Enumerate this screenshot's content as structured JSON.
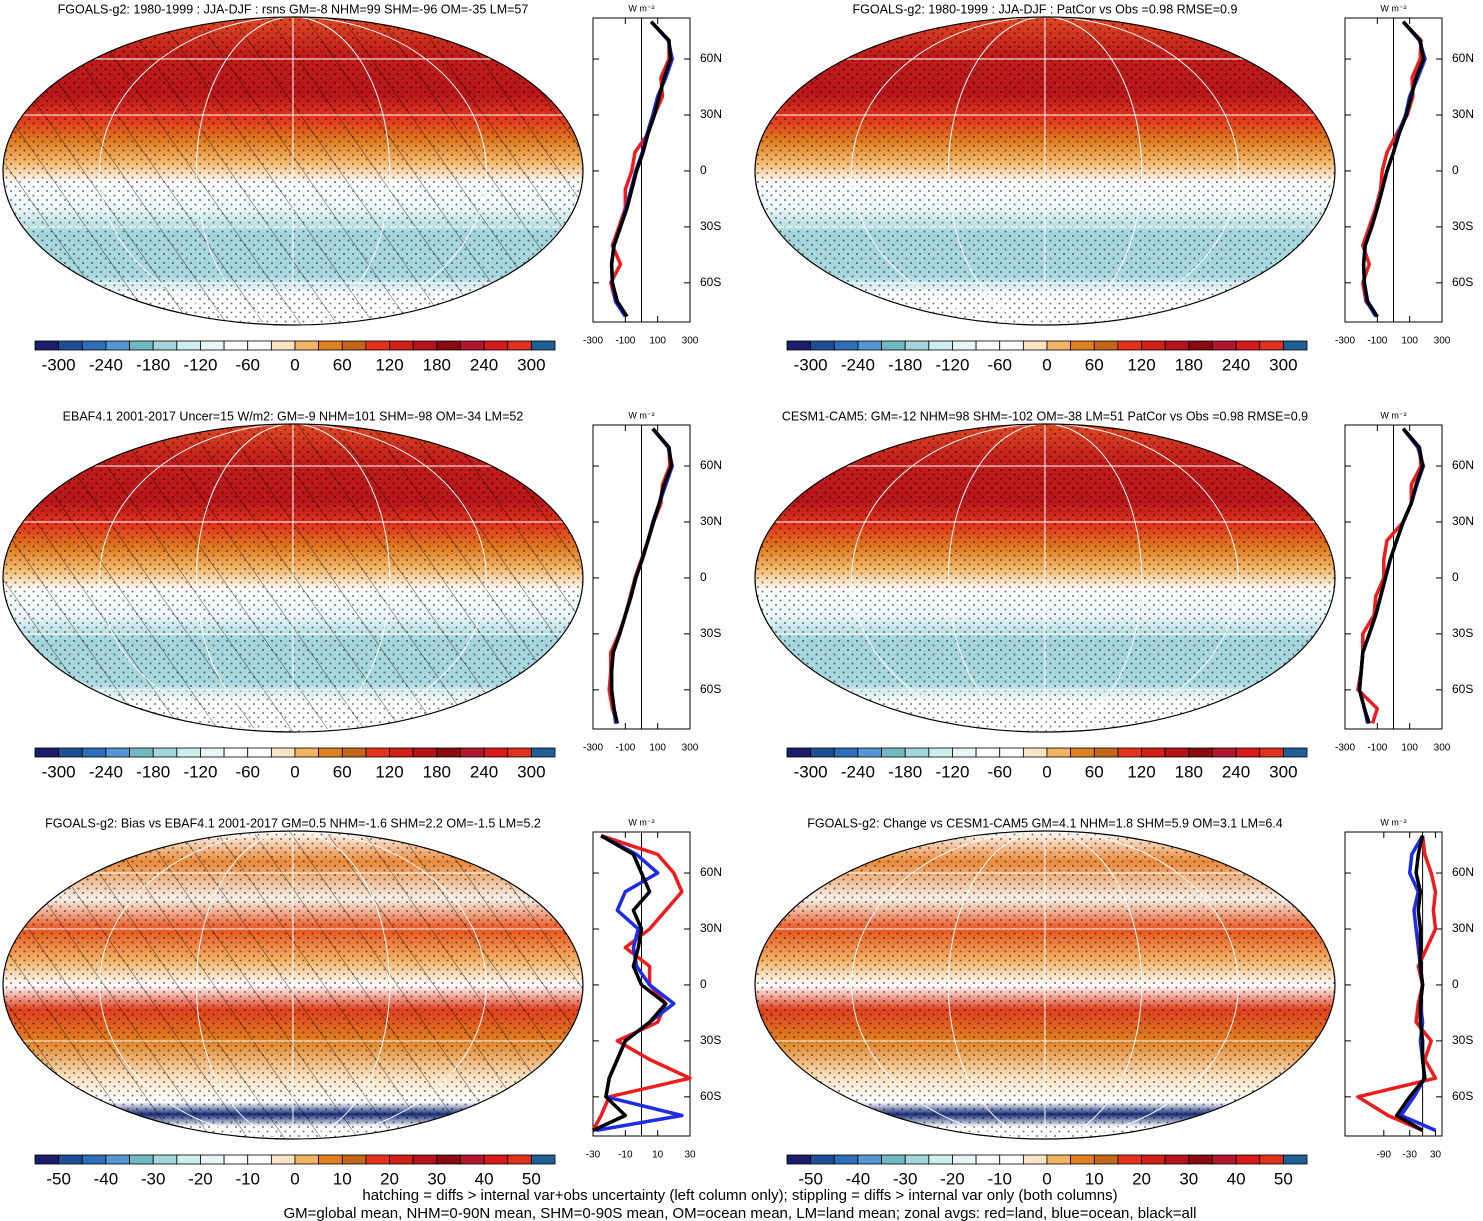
{
  "chart_data": [
    {
      "type": "map",
      "title": "FGOALS-g2: 1980-1999 : JJA-DJF : rsns GM=-8 NHM=99 SHM=-96 OM=-35 LM=57",
      "levels": [
        -300,
        -270,
        -240,
        -210,
        -180,
        -150,
        -120,
        -90,
        -60,
        -30,
        0,
        30,
        60,
        90,
        120,
        150,
        180,
        210,
        240,
        270,
        300
      ],
      "colors": [
        "#1b1f6b",
        "#1e4f96",
        "#2e6eb8",
        "#5795d2",
        "#72b8c0",
        "#a3d6dc",
        "#cdeef0",
        "#e8f6f6",
        "#ffffff",
        "#ffffff",
        "#fbe3c3",
        "#f2b266",
        "#df8020",
        "#c2671a",
        "#e8331c",
        "#d31f1a",
        "#b5121b",
        "#8a0a12",
        "#b2182b",
        "#d7191c",
        "#e0301e",
        "#1f5f96"
      ]
    },
    {
      "type": "line",
      "unit": "W m⁻²",
      "x": [
        80,
        70,
        60,
        50,
        40,
        30,
        20,
        10,
        0,
        -10,
        -20,
        -30,
        -40,
        -50,
        -60,
        -70,
        -78
      ],
      "xlim": [
        -81,
        82
      ],
      "xticks": [
        {
          "value": 60,
          "label": "60N"
        },
        {
          "value": 30,
          "label": "30N"
        },
        0,
        {
          "value": -30,
          "label": "30S"
        },
        {
          "value": -60,
          "label": "60S"
        }
      ],
      "ylim": [
        -300,
        300
      ],
      "yticks": [
        -300,
        -100,
        100,
        300
      ],
      "series": [
        {
          "color": "#ee1c1c",
          "values": [
            60,
            170,
            170,
            120,
            130,
            80,
            40,
            -40,
            -60,
            -100,
            -100,
            -140,
            -180,
            -130,
            -190,
            -160,
            -90
          ]
        },
        {
          "color": "#1c2ce8",
          "values": [
            60,
            165,
            190,
            150,
            100,
            70,
            35,
            5,
            -35,
            -65,
            -95,
            -130,
            -170,
            -185,
            -180,
            -160,
            -100
          ]
        },
        {
          "color": "#000000",
          "values": [
            60,
            170,
            180,
            140,
            110,
            80,
            40,
            10,
            -30,
            -60,
            -90,
            -130,
            -170,
            -185,
            -180,
            -150,
            -90
          ]
        }
      ]
    },
    {
      "type": "map",
      "title": "FGOALS-g2: 1980-1999 : JJA-DJF : PatCor vs Obs =0.98 RMSE=0.9",
      "levels": [
        -300,
        -270,
        -240,
        -210,
        -180,
        -150,
        -120,
        -90,
        -60,
        -30,
        0,
        30,
        60,
        90,
        120,
        150,
        180,
        210,
        240,
        270,
        300
      ],
      "colors": [
        "#1b1f6b",
        "#1e4f96",
        "#2e6eb8",
        "#5795d2",
        "#72b8c0",
        "#a3d6dc",
        "#cdeef0",
        "#e8f6f6",
        "#ffffff",
        "#ffffff",
        "#fbe3c3",
        "#f2b266",
        "#df8020",
        "#c2671a",
        "#e8331c",
        "#d31f1a",
        "#b5121b",
        "#8a0a12",
        "#b2182b",
        "#d7191c",
        "#e0301e",
        "#1f5f96"
      ]
    },
    {
      "type": "line",
      "unit": "W m⁻²",
      "x": [
        80,
        70,
        60,
        50,
        40,
        30,
        20,
        10,
        0,
        -10,
        -20,
        -30,
        -40,
        -50,
        -60,
        -70,
        -78
      ],
      "xlim": [
        -81,
        82
      ],
      "xticks": [
        {
          "value": 60,
          "label": "60N"
        },
        {
          "value": 30,
          "label": "30N"
        },
        0,
        {
          "value": -30,
          "label": "30S"
        },
        {
          "value": -60,
          "label": "60S"
        }
      ],
      "ylim": [
        -300,
        300
      ],
      "yticks": [
        -300,
        -100,
        100,
        300
      ],
      "series": [
        {
          "color": "#ee1c1c",
          "values": [
            60,
            170,
            165,
            115,
            120,
            85,
            20,
            -40,
            -70,
            -80,
            -110,
            -150,
            -190,
            -150,
            -190,
            -170,
            -100
          ]
        },
        {
          "color": "#1c2ce8",
          "values": [
            60,
            160,
            195,
            150,
            100,
            75,
            30,
            0,
            -40,
            -70,
            -100,
            -135,
            -175,
            -185,
            -180,
            -165,
            -110
          ]
        },
        {
          "color": "#000000",
          "values": [
            60,
            165,
            185,
            140,
            110,
            80,
            35,
            0,
            -40,
            -70,
            -100,
            -135,
            -175,
            -185,
            -180,
            -160,
            -100
          ]
        }
      ]
    },
    {
      "type": "map",
      "title": "EBAF4.1 2001-2017 Uncer=15 W/m2: GM=-9 NHM=101 SHM=-98 OM=-34 LM=52",
      "levels": [
        -300,
        -270,
        -240,
        -210,
        -180,
        -150,
        -120,
        -90,
        -60,
        -30,
        0,
        30,
        60,
        90,
        120,
        150,
        180,
        210,
        240,
        270,
        300
      ],
      "colors": [
        "#1b1f6b",
        "#1e4f96",
        "#2e6eb8",
        "#5795d2",
        "#72b8c0",
        "#a3d6dc",
        "#cdeef0",
        "#e8f6f6",
        "#ffffff",
        "#ffffff",
        "#fbe3c3",
        "#f2b266",
        "#df8020",
        "#c2671a",
        "#e8331c",
        "#d31f1a",
        "#b5121b",
        "#8a0a12",
        "#b2182b",
        "#d7191c",
        "#e0301e",
        "#1f5f96"
      ]
    },
    {
      "type": "line",
      "unit": "W m⁻²",
      "x": [
        80,
        70,
        60,
        50,
        40,
        30,
        20,
        10,
        0,
        -10,
        -20,
        -30,
        -40,
        -50,
        -60,
        -70,
        -78
      ],
      "xlim": [
        -81,
        82
      ],
      "xticks": [
        {
          "value": 60,
          "label": "60N"
        },
        {
          "value": 30,
          "label": "30N"
        },
        0,
        {
          "value": -30,
          "label": "30S"
        },
        {
          "value": -60,
          "label": "60S"
        }
      ],
      "ylim": [
        -300,
        300
      ],
      "yticks": [
        -300,
        -100,
        100,
        300
      ],
      "series": [
        {
          "color": "#ee1c1c",
          "values": [
            70,
            170,
            175,
            130,
            120,
            75,
            40,
            0,
            -40,
            -70,
            -100,
            -140,
            -190,
            -190,
            -200,
            -180,
            -150
          ]
        },
        {
          "color": "#1c2ce8",
          "values": [
            70,
            165,
            190,
            150,
            110,
            70,
            40,
            5,
            -35,
            -65,
            -100,
            -135,
            -175,
            -185,
            -185,
            -170,
            -160
          ]
        },
        {
          "color": "#000000",
          "values": [
            70,
            170,
            185,
            140,
            110,
            75,
            40,
            5,
            -35,
            -65,
            -100,
            -135,
            -175,
            -185,
            -185,
            -170,
            -150
          ]
        }
      ]
    },
    {
      "type": "map",
      "title": "CESM1-CAM5: GM=-12 NHM=98 SHM=-102 OM=-38 LM=51 PatCor vs Obs =0.98 RMSE=0.9",
      "levels": [
        -300,
        -270,
        -240,
        -210,
        -180,
        -150,
        -120,
        -90,
        -60,
        -30,
        0,
        30,
        60,
        90,
        120,
        150,
        180,
        210,
        240,
        270,
        300
      ],
      "colors": [
        "#1b1f6b",
        "#1e4f96",
        "#2e6eb8",
        "#5795d2",
        "#72b8c0",
        "#a3d6dc",
        "#cdeef0",
        "#e8f6f6",
        "#ffffff",
        "#ffffff",
        "#fbe3c3",
        "#f2b266",
        "#df8020",
        "#c2671a",
        "#e8331c",
        "#d31f1a",
        "#b5121b",
        "#8a0a12",
        "#b2182b",
        "#d7191c",
        "#e0301e",
        "#1f5f96"
      ]
    },
    {
      "type": "line",
      "unit": "W m⁻²",
      "x": [
        80,
        70,
        60,
        50,
        40,
        30,
        20,
        10,
        0,
        -10,
        -20,
        -30,
        -40,
        -50,
        -60,
        -70,
        -78
      ],
      "xlim": [
        -81,
        82
      ],
      "xticks": [
        {
          "value": 60,
          "label": "60N"
        },
        {
          "value": 30,
          "label": "30N"
        },
        0,
        {
          "value": -30,
          "label": "30S"
        },
        {
          "value": -60,
          "label": "60S"
        }
      ],
      "ylim": [
        -300,
        300
      ],
      "yticks": [
        -300,
        -100,
        100,
        300
      ],
      "series": [
        {
          "color": "#ee1c1c",
          "values": [
            60,
            160,
            170,
            110,
            110,
            60,
            -40,
            -60,
            -60,
            -110,
            -120,
            -190,
            -190,
            -200,
            -220,
            -100,
            -130
          ]
        },
        {
          "color": "#1c2ce8",
          "values": [
            60,
            150,
            185,
            145,
            110,
            60,
            20,
            -20,
            -50,
            -80,
            -110,
            -150,
            -190,
            -200,
            -210,
            -180,
            -160
          ]
        },
        {
          "color": "#000000",
          "values": [
            60,
            160,
            180,
            140,
            110,
            60,
            20,
            -20,
            -50,
            -80,
            -110,
            -150,
            -190,
            -200,
            -210,
            -180,
            -150
          ]
        }
      ]
    },
    {
      "type": "map",
      "title": "FGOALS-g2: Bias vs EBAF4.1 2001-2017 GM=0.5 NHM=-1.6 SHM=2.2 OM=-1.5 LM=5.2",
      "levels": [
        -50,
        -45,
        -40,
        -35,
        -30,
        -25,
        -20,
        -15,
        -10,
        -5,
        0,
        5,
        10,
        15,
        20,
        25,
        30,
        35,
        40,
        45,
        50
      ],
      "colors": [
        "#1b1f6b",
        "#1e4f96",
        "#2e6eb8",
        "#5795d2",
        "#72b8c0",
        "#a3d6dc",
        "#cdeef0",
        "#e8f6f6",
        "#ffffff",
        "#ffffff",
        "#fbe3c3",
        "#f2b266",
        "#df8020",
        "#c2671a",
        "#e8331c",
        "#d31f1a",
        "#b5121b",
        "#8a0a12",
        "#b2182b",
        "#d7191c",
        "#e0301e",
        "#1f5f96"
      ]
    },
    {
      "type": "line",
      "unit": "W m⁻²",
      "x": [
        80,
        70,
        60,
        50,
        40,
        30,
        20,
        10,
        0,
        -10,
        -20,
        -30,
        -40,
        -50,
        -60,
        -70,
        -78
      ],
      "xlim": [
        -81,
        82
      ],
      "xticks": [
        {
          "value": 60,
          "label": "60N"
        },
        {
          "value": 30,
          "label": "30N"
        },
        0,
        {
          "value": -30,
          "label": "30S"
        },
        {
          "value": -60,
          "label": "60S"
        }
      ],
      "ylim": [
        -30,
        30
      ],
      "yticks": [
        -30,
        -10,
        10,
        30
      ],
      "series": [
        {
          "color": "#ee1c1c",
          "values": [
            -25,
            10,
            20,
            25,
            15,
            5,
            -10,
            5,
            5,
            15,
            10,
            -15,
            5,
            30,
            -20,
            -25,
            -30
          ]
        },
        {
          "color": "#1c2ce8",
          "values": [
            -25,
            -3,
            10,
            -10,
            -15,
            -2,
            -5,
            -3,
            5,
            20,
            5,
            -10,
            -15,
            -20,
            -22,
            25,
            -28
          ]
        },
        {
          "color": "#000000",
          "values": [
            -25,
            -5,
            0,
            5,
            -5,
            0,
            -2,
            -5,
            0,
            15,
            5,
            -10,
            -15,
            -20,
            -22,
            -10,
            -30
          ]
        }
      ]
    },
    {
      "type": "map",
      "title": "FGOALS-g2: Change vs CESM1-CAM5 GM=4.1 NHM=1.8 SHM=5.9 OM=3.1 LM=6.4",
      "levels": [
        -50,
        -45,
        -40,
        -35,
        -30,
        -25,
        -20,
        -15,
        -10,
        -5,
        0,
        5,
        10,
        15,
        20,
        25,
        30,
        35,
        40,
        45,
        50
      ],
      "colors": [
        "#1b1f6b",
        "#1e4f96",
        "#2e6eb8",
        "#5795d2",
        "#72b8c0",
        "#a3d6dc",
        "#cdeef0",
        "#e8f6f6",
        "#ffffff",
        "#ffffff",
        "#fbe3c3",
        "#f2b266",
        "#df8020",
        "#c2671a",
        "#e8331c",
        "#d31f1a",
        "#b5121b",
        "#8a0a12",
        "#b2182b",
        "#d7191c",
        "#e0301e",
        "#1f5f96"
      ]
    },
    {
      "type": "line",
      "unit": "W m⁻²",
      "x": [
        80,
        70,
        60,
        50,
        40,
        30,
        20,
        10,
        0,
        -10,
        -20,
        -30,
        -40,
        -50,
        -60,
        -70,
        -78
      ],
      "xlim": [
        -81,
        82
      ],
      "xticks": [
        {
          "value": 60,
          "label": "60N"
        },
        {
          "value": 30,
          "label": "30N"
        },
        0,
        {
          "value": -30,
          "label": "30S"
        },
        {
          "value": -60,
          "label": "60S"
        }
      ],
      "ylim": [
        -180,
        45
      ],
      "yticks": [
        -90,
        -30,
        30
      ],
      "series": [
        {
          "color": "#ee1c1c",
          "values": [
            0,
            5,
            20,
            30,
            25,
            30,
            10,
            -10,
            0,
            -10,
            -15,
            20,
            5,
            30,
            -150,
            -80,
            0
          ]
        },
        {
          "color": "#1c2ce8",
          "values": [
            0,
            -25,
            -30,
            -10,
            -20,
            -15,
            -10,
            -5,
            0,
            -5,
            0,
            -5,
            0,
            5,
            -20,
            -50,
            30
          ]
        },
        {
          "color": "#000000",
          "values": [
            0,
            -10,
            -15,
            -5,
            -10,
            -5,
            -5,
            -5,
            0,
            -5,
            -5,
            0,
            0,
            5,
            -30,
            -60,
            0
          ]
        }
      ]
    }
  ],
  "notes": [
    "hatching = diffs > internal var+obs uncertainty (left column only); stippling = diffs > internal var only (both columns)",
    "GM=global mean, NHM=0-90N mean, SHM=0-90S mean, OM=ocean mean, LM=land mean; zonal avgs: red=land, blue=ocean, black=all"
  ]
}
